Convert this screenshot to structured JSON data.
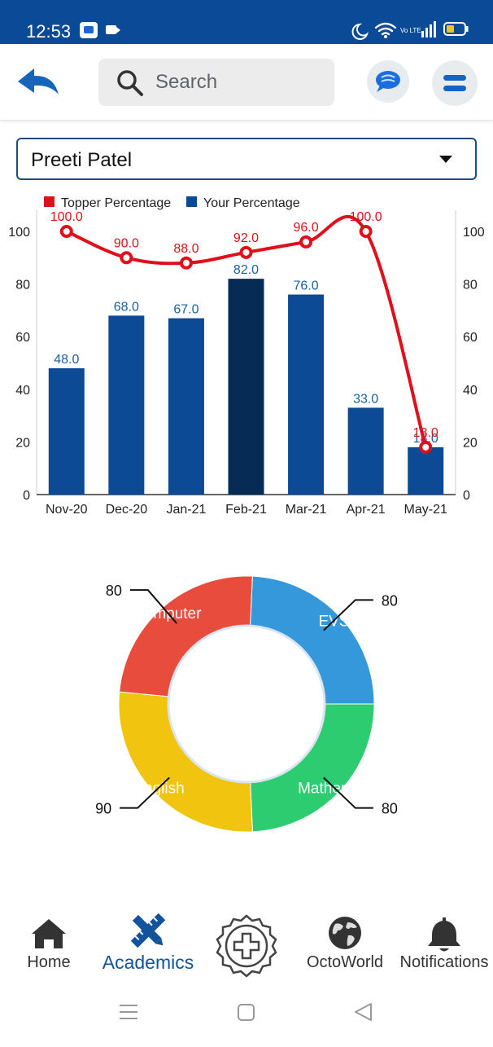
{
  "status_bar": {
    "time": "12:53",
    "network_label": "Vo LTE"
  },
  "search": {
    "placeholder": "Search"
  },
  "student": {
    "selected": "Preeti Patel"
  },
  "colors": {
    "brand": "#0a4a96",
    "topper_line": "#e0101a",
    "bar": "#0d4a96",
    "bar_highlight": "#062b54",
    "mathematics": "#2ecc71",
    "english": "#f1c40f",
    "computer": "#e74c3c",
    "evs": "#3498db"
  },
  "chart_data": [
    {
      "type": "bar",
      "categories": [
        "Nov-20",
        "Dec-20",
        "Jan-21",
        "Feb-21",
        "Mar-21",
        "Apr-21",
        "May-21"
      ],
      "series": [
        {
          "name": "Your Percentage",
          "type": "bar",
          "values": [
            48.0,
            68.0,
            67.0,
            82.0,
            76.0,
            33.0,
            18.0
          ],
          "value_labels": [
            "48.0",
            "68.0",
            "67.0",
            "82.0",
            "76.0",
            "33.0",
            "18.0"
          ]
        },
        {
          "name": "Topper Percentage",
          "type": "line",
          "values": [
            100.0,
            90.0,
            88.0,
            92.0,
            96.0,
            100.0,
            18.0
          ],
          "value_labels": [
            "100.0",
            "90.0",
            "88.0",
            "92.0",
            "96.0",
            "100.0",
            "18.0"
          ]
        }
      ],
      "highlighted_category": "Feb-21",
      "ylim": [
        0,
        100
      ],
      "yticks": [
        "0",
        "20",
        "40",
        "60",
        "80",
        "100"
      ],
      "legend_position": "top-left",
      "grid": false
    },
    {
      "type": "pie",
      "donut": true,
      "categories": [
        "Mathematics",
        "English",
        "Computer",
        "EVS"
      ],
      "values": [
        80,
        90,
        80,
        80
      ],
      "value_labels": [
        "80",
        "90",
        "80",
        "80"
      ],
      "slice_labels": [
        "Mathemati",
        "English",
        "Computer",
        "EVS"
      ],
      "legend_position": "top-left"
    }
  ],
  "bottom_nav": {
    "items": [
      {
        "label": "Home",
        "icon": "home-icon",
        "active": false
      },
      {
        "label": "Academics",
        "icon": "academics-icon",
        "active": true
      },
      {
        "label": "",
        "icon": "add-badge-icon",
        "active": false
      },
      {
        "label": "OctoWorld",
        "icon": "globe-icon",
        "active": false
      },
      {
        "label": "Notifications",
        "icon": "bell-icon",
        "active": false
      }
    ]
  }
}
